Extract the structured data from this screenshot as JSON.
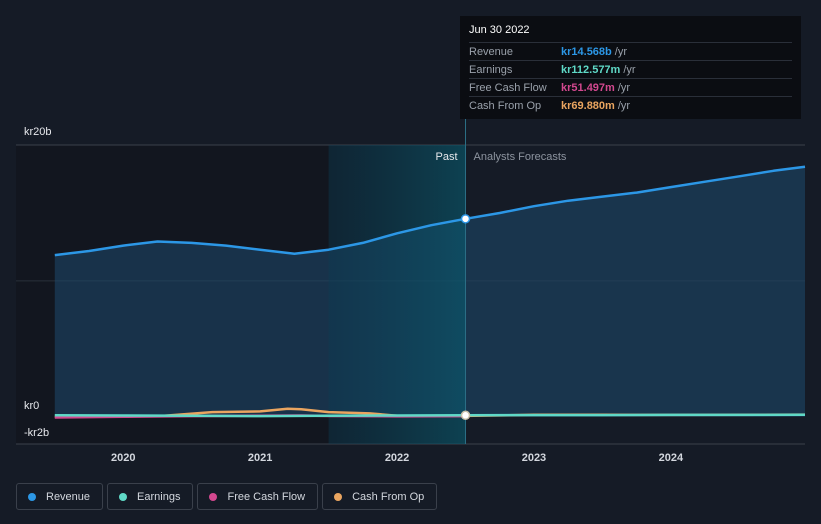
{
  "chart_data": {
    "type": "area",
    "title": "",
    "y_unit_prefix": "kr",
    "ylim": [
      -2,
      20
    ],
    "y_ticks": [
      {
        "value": 20,
        "label": "kr20b"
      },
      {
        "value": 0,
        "label": "kr0"
      },
      {
        "value": -2,
        "label": "-kr2b"
      }
    ],
    "xlim": [
      2019.45,
      2024.98
    ],
    "x_ticks": [
      {
        "value": 2020,
        "label": "2020"
      },
      {
        "value": 2021,
        "label": "2021"
      },
      {
        "value": 2022,
        "label": "2022"
      },
      {
        "value": 2023,
        "label": "2023"
      },
      {
        "value": 2024,
        "label": "2024"
      }
    ],
    "past_label": "Past",
    "forecast_label": "Analysts Forecasts",
    "divider_x": 2022.5,
    "highlight_start_x": 2021.5,
    "series": [
      {
        "name": "Revenue",
        "color": "#2c97e6",
        "points": [
          [
            2019.5,
            11.9
          ],
          [
            2019.75,
            12.2
          ],
          [
            2020.0,
            12.6
          ],
          [
            2020.25,
            12.9
          ],
          [
            2020.5,
            12.8
          ],
          [
            2020.75,
            12.6
          ],
          [
            2021.0,
            12.3
          ],
          [
            2021.25,
            12.0
          ],
          [
            2021.5,
            12.3
          ],
          [
            2021.75,
            12.8
          ],
          [
            2022.0,
            13.5
          ],
          [
            2022.25,
            14.1
          ],
          [
            2022.5,
            14.568
          ],
          [
            2022.75,
            15.0
          ],
          [
            2023.0,
            15.5
          ],
          [
            2023.25,
            15.9
          ],
          [
            2023.5,
            16.2
          ],
          [
            2023.75,
            16.5
          ],
          [
            2024.0,
            16.9
          ],
          [
            2024.25,
            17.3
          ],
          [
            2024.5,
            17.7
          ],
          [
            2024.75,
            18.1
          ],
          [
            2024.98,
            18.4
          ]
        ]
      },
      {
        "name": "Earnings",
        "color": "#5fd9c7",
        "points": [
          [
            2019.5,
            0.12
          ],
          [
            2020.0,
            0.1
          ],
          [
            2020.5,
            0.08
          ],
          [
            2021.0,
            0.05
          ],
          [
            2021.5,
            0.08
          ],
          [
            2022.0,
            0.1
          ],
          [
            2022.5,
            0.113
          ],
          [
            2023.0,
            0.13
          ],
          [
            2023.5,
            0.13
          ],
          [
            2024.0,
            0.14
          ],
          [
            2024.98,
            0.15
          ]
        ]
      },
      {
        "name": "Free Cash Flow",
        "color": "#d3488f",
        "points": [
          [
            2019.5,
            -0.05
          ],
          [
            2020.0,
            0.0
          ],
          [
            2020.3,
            0.03
          ],
          [
            2020.5,
            0.05
          ],
          [
            2021.0,
            0.08
          ],
          [
            2021.3,
            0.1
          ],
          [
            2021.5,
            0.06
          ],
          [
            2022.0,
            0.03
          ],
          [
            2022.5,
            0.051
          ]
        ]
      },
      {
        "name": "Cash From Op",
        "color": "#eaa560",
        "points": [
          [
            2019.5,
            0.0
          ],
          [
            2020.0,
            0.02
          ],
          [
            2020.3,
            0.08
          ],
          [
            2020.65,
            0.35
          ],
          [
            2021.0,
            0.4
          ],
          [
            2021.2,
            0.6
          ],
          [
            2021.3,
            0.55
          ],
          [
            2021.5,
            0.35
          ],
          [
            2021.8,
            0.25
          ],
          [
            2022.0,
            0.08
          ],
          [
            2022.5,
            0.07
          ],
          [
            2023.0,
            0.15
          ],
          [
            2023.5,
            0.15
          ],
          [
            2024.0,
            0.14
          ],
          [
            2024.98,
            0.16
          ]
        ]
      }
    ]
  },
  "tooltip": {
    "date": "Jun 30 2022",
    "rows": [
      {
        "label": "Revenue",
        "value": "kr14.568b",
        "unit": "/yr",
        "color": "#2c97e6"
      },
      {
        "label": "Earnings",
        "value": "kr112.577m",
        "unit": "/yr",
        "color": "#5fd9c7"
      },
      {
        "label": "Free Cash Flow",
        "value": "kr51.497m",
        "unit": "/yr",
        "color": "#d3488f"
      },
      {
        "label": "Cash From Op",
        "value": "kr69.880m",
        "unit": "/yr",
        "color": "#eaa560"
      }
    ]
  },
  "legend": [
    {
      "label": "Revenue",
      "color": "#2c97e6"
    },
    {
      "label": "Earnings",
      "color": "#5fd9c7"
    },
    {
      "label": "Free Cash Flow",
      "color": "#d3488f"
    },
    {
      "label": "Cash From Op",
      "color": "#eaa560"
    }
  ]
}
